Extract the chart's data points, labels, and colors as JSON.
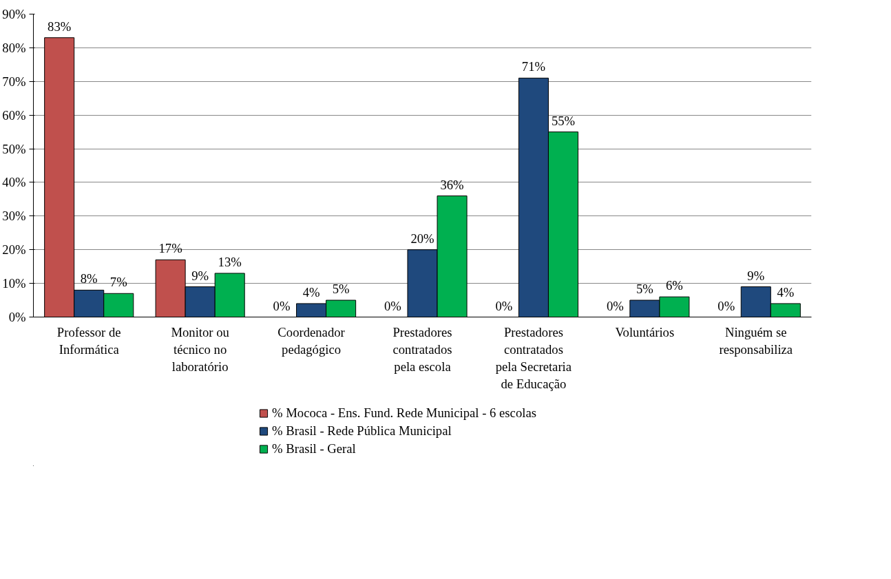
{
  "chart_data": {
    "type": "bar",
    "categories": [
      "Professor de Informática",
      "Monitor ou técnico no laboratório",
      "Coordenador pedagógico",
      "Prestadores contratados pela escola",
      "Prestadores contratados pela Secretaria de Educação",
      "Voluntários",
      "Ninguém se responsabiliza"
    ],
    "series": [
      {
        "name": "% Mococa - Ens. Fund. Rede Municipal - 6 escolas",
        "color": "#c0504d",
        "values": [
          83,
          17,
          0,
          0,
          0,
          0,
          0
        ],
        "value_labels": [
          "83%",
          "17%",
          "0%",
          "0%",
          "0%",
          "0%",
          "0%"
        ]
      },
      {
        "name": "% Brasil - Rede Pública Municipal",
        "color": "#1f497d",
        "values": [
          8,
          9,
          4,
          20,
          71,
          5,
          9
        ],
        "value_labels": [
          "8%",
          "9%",
          "4%",
          "20%",
          "71%",
          "5%",
          "9%"
        ]
      },
      {
        "name": "% Brasil - Geral",
        "color": "#00b050",
        "values": [
          7,
          13,
          5,
          36,
          55,
          6,
          4
        ],
        "value_labels": [
          "7%",
          "13%",
          "5%",
          "36%",
          "55%",
          "6%",
          "4%"
        ]
      }
    ],
    "ylim": [
      0,
      90
    ],
    "yticks": [
      {
        "value": 0,
        "label": "0%"
      },
      {
        "value": 10,
        "label": "10%"
      },
      {
        "value": 20,
        "label": "20%"
      },
      {
        "value": 30,
        "label": "30%"
      },
      {
        "value": 40,
        "label": "40%"
      },
      {
        "value": 50,
        "label": "50%"
      },
      {
        "value": 60,
        "label": "60%"
      },
      {
        "value": 70,
        "label": "70%"
      },
      {
        "value": 80,
        "label": "80%"
      },
      {
        "value": 90,
        "label": "90%"
      }
    ],
    "grid": "y",
    "legend": "bottom"
  }
}
